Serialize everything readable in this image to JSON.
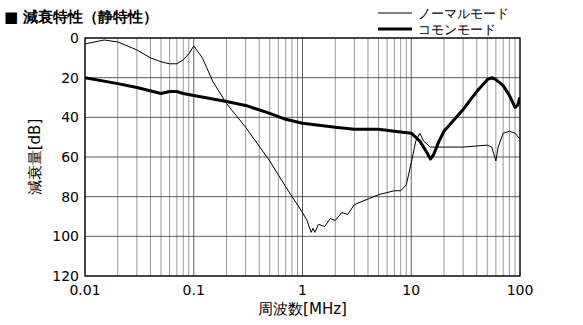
{
  "chart_data": {
    "type": "line",
    "title": "■ 減衰特性（静特性）",
    "x_label": "周波数[MHz]",
    "y_label": "減衰量[dB]",
    "log": "x",
    "grid": true,
    "legend": "top-right",
    "xlim": [
      0.01,
      100
    ],
    "xticks": [
      0.01,
      0.1,
      1,
      10,
      100
    ],
    "ylim": [
      120,
      0
    ],
    "yticks": [
      0,
      20,
      40,
      60,
      80,
      100,
      120
    ],
    "series": [
      {
        "name": "ノーマルモード",
        "color": "#000000",
        "line_style": "thin",
        "x": [
          0.01,
          0.015,
          0.02,
          0.03,
          0.04,
          0.05,
          0.06,
          0.07,
          0.08,
          0.09,
          0.1,
          0.12,
          0.15,
          0.2,
          0.3,
          0.5,
          0.7,
          1,
          1.1,
          1.2,
          1.25,
          1.3,
          1.4,
          1.6,
          1.8,
          2,
          2.3,
          2.6,
          3,
          5,
          7,
          8,
          9,
          10,
          11,
          12,
          13,
          15,
          20,
          30,
          50,
          55,
          60,
          63,
          70,
          80,
          90,
          100
        ],
        "values": [
          3,
          1,
          2,
          6,
          10,
          12,
          13,
          13,
          11,
          8,
          4,
          10,
          22,
          33,
          45,
          62,
          75,
          88,
          92,
          98,
          96,
          98,
          94,
          95,
          91,
          92,
          88,
          89,
          84,
          79,
          77,
          77,
          74,
          63,
          52,
          48,
          52,
          55,
          55,
          55,
          54,
          55,
          62,
          55,
          48,
          47,
          48,
          51
        ]
      },
      {
        "name": "コモンモード",
        "color": "#000000",
        "line_style": "thick",
        "x": [
          0.01,
          0.02,
          0.03,
          0.05,
          0.06,
          0.07,
          0.08,
          0.1,
          0.2,
          0.3,
          0.5,
          0.7,
          1,
          2,
          3,
          5,
          7,
          10,
          12,
          14,
          15,
          16,
          18,
          20,
          30,
          40,
          50,
          55,
          60,
          70,
          80,
          90,
          95,
          100
        ],
        "values": [
          20,
          23,
          25,
          28,
          27,
          27,
          28,
          29,
          32,
          34,
          38,
          41,
          43,
          45,
          46,
          46,
          47,
          48,
          52,
          58,
          61,
          59,
          52,
          47,
          36,
          27,
          21,
          20,
          21,
          24,
          29,
          35,
          34,
          30
        ]
      }
    ]
  }
}
